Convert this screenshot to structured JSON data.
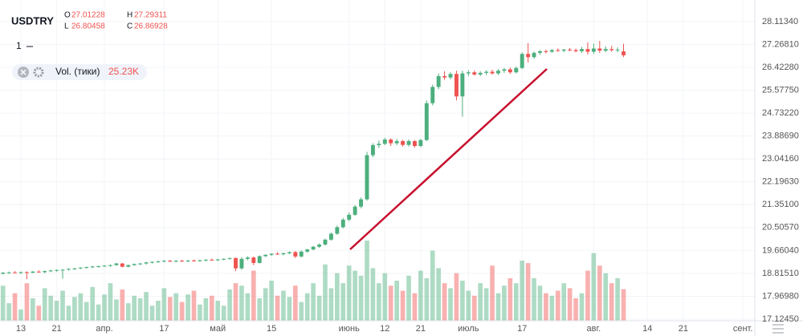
{
  "chart_data": {
    "type": "candlestick",
    "symbol": "USDTRY",
    "legend_keys": [
      "O",
      "H",
      "L",
      "C"
    ],
    "interval": "1",
    "volume_title": "Vol. (тики)",
    "volume_label": "25.23K",
    "up_color": "#4caf7d",
    "down_color": "#ef5350",
    "grid": true,
    "ylim": [
      17.065,
      28.911
    ],
    "yticks": [
      {
        "value": 17.1245,
        "label": "17.12450"
      },
      {
        "value": 17.9698,
        "label": "17.96980"
      },
      {
        "value": 18.8151,
        "label": "18.81510"
      },
      {
        "value": 19.6604,
        "label": "19.66040"
      },
      {
        "value": 20.5057,
        "label": "20.50570"
      },
      {
        "value": 21.351,
        "label": "21.35100"
      },
      {
        "value": 22.1963,
        "label": "22.19630"
      },
      {
        "value": 23.0416,
        "label": "23.04160"
      },
      {
        "value": 23.8869,
        "label": "23.88690"
      },
      {
        "value": 24.7322,
        "label": "24.73220"
      },
      {
        "value": 25.5775,
        "label": "25.57750"
      },
      {
        "value": 26.4228,
        "label": "26.42280"
      },
      {
        "value": 27.2681,
        "label": "27.26810"
      },
      {
        "value": 28.1134,
        "label": "28.11340"
      }
    ],
    "xlim": [
      -0.5,
      126
    ],
    "xticks": [
      {
        "value": 3,
        "label": "13"
      },
      {
        "value": 9,
        "label": "21"
      },
      {
        "value": 17,
        "label": "апр."
      },
      {
        "value": 27,
        "label": "17"
      },
      {
        "value": 36,
        "label": "май"
      },
      {
        "value": 45,
        "label": "15"
      },
      {
        "value": 58,
        "label": "июнь"
      },
      {
        "value": 64,
        "label": "12"
      },
      {
        "value": 70,
        "label": "21"
      },
      {
        "value": 78,
        "label": "июль"
      },
      {
        "value": 87,
        "label": "17"
      },
      {
        "value": 99,
        "label": "авг."
      },
      {
        "value": 108,
        "label": "14"
      },
      {
        "value": 114,
        "label": "21"
      },
      {
        "value": 124,
        "label": "сент."
      }
    ],
    "candles": [
      [
        18.8,
        18.86,
        18.78,
        18.84
      ],
      [
        18.84,
        18.88,
        18.8,
        18.85
      ],
      [
        18.85,
        18.9,
        18.82,
        18.83
      ],
      [
        18.83,
        18.88,
        18.79,
        18.86
      ],
      [
        18.86,
        18.89,
        18.6,
        18.84
      ],
      [
        18.84,
        18.9,
        18.82,
        18.88
      ],
      [
        18.88,
        18.93,
        18.84,
        18.86
      ],
      [
        18.86,
        18.92,
        18.82,
        18.9
      ],
      [
        18.9,
        18.95,
        18.86,
        18.92
      ],
      [
        18.92,
        18.96,
        18.88,
        18.94
      ],
      [
        18.94,
        18.97,
        18.62,
        18.95
      ],
      [
        18.95,
        19.0,
        18.92,
        18.98
      ],
      [
        18.98,
        19.02,
        18.94,
        19.0
      ],
      [
        19.0,
        19.04,
        18.97,
        19.03
      ],
      [
        19.03,
        19.06,
        18.99,
        19.05
      ],
      [
        19.05,
        19.09,
        19.01,
        19.07
      ],
      [
        19.07,
        19.1,
        19.03,
        19.08
      ],
      [
        19.08,
        19.12,
        19.05,
        19.1
      ],
      [
        19.1,
        19.14,
        19.06,
        19.12
      ],
      [
        19.12,
        19.2,
        19.1,
        19.18
      ],
      [
        19.18,
        19.2,
        19.04,
        19.06
      ],
      [
        19.06,
        19.14,
        19.04,
        19.12
      ],
      [
        19.12,
        19.18,
        19.1,
        19.16
      ],
      [
        19.16,
        19.2,
        19.12,
        19.18
      ],
      [
        19.18,
        19.24,
        19.14,
        19.22
      ],
      [
        19.22,
        19.26,
        19.18,
        19.24
      ],
      [
        19.24,
        19.28,
        19.2,
        19.26
      ],
      [
        19.26,
        19.3,
        19.22,
        19.28
      ],
      [
        19.28,
        19.31,
        19.23,
        19.25
      ],
      [
        19.25,
        19.3,
        19.22,
        19.28
      ],
      [
        19.28,
        19.32,
        19.24,
        19.26
      ],
      [
        19.26,
        19.31,
        19.23,
        19.29
      ],
      [
        19.29,
        19.33,
        19.25,
        19.27
      ],
      [
        19.27,
        19.32,
        19.24,
        19.3
      ],
      [
        19.3,
        19.34,
        19.26,
        19.32
      ],
      [
        19.32,
        19.36,
        19.28,
        19.3
      ],
      [
        19.3,
        19.35,
        19.27,
        19.33
      ],
      [
        19.33,
        19.37,
        19.3,
        19.35
      ],
      [
        19.35,
        19.4,
        19.32,
        19.38
      ],
      [
        19.38,
        19.4,
        18.9,
        19.0
      ],
      [
        19.0,
        19.42,
        18.95,
        19.35
      ],
      [
        19.35,
        19.45,
        19.3,
        19.4
      ],
      [
        19.4,
        19.44,
        19.12,
        19.2
      ],
      [
        19.2,
        19.48,
        19.18,
        19.45
      ],
      [
        19.45,
        19.52,
        19.42,
        19.5
      ],
      [
        19.5,
        19.56,
        19.46,
        19.54
      ],
      [
        19.54,
        19.6,
        19.5,
        19.52
      ],
      [
        19.52,
        19.58,
        19.48,
        19.56
      ],
      [
        19.56,
        19.62,
        19.52,
        19.6
      ],
      [
        19.6,
        19.64,
        19.38,
        19.44
      ],
      [
        19.44,
        19.66,
        19.4,
        19.62
      ],
      [
        19.62,
        19.72,
        19.58,
        19.7
      ],
      [
        19.7,
        19.82,
        19.66,
        19.8
      ],
      [
        19.8,
        19.92,
        19.76,
        19.88
      ],
      [
        19.88,
        20.1,
        19.84,
        20.06
      ],
      [
        20.06,
        20.32,
        20.02,
        20.28
      ],
      [
        20.28,
        20.58,
        20.24,
        20.52
      ],
      [
        20.52,
        20.86,
        20.48,
        20.8
      ],
      [
        20.8,
        21.06,
        20.74,
        20.98
      ],
      [
        20.98,
        21.34,
        20.94,
        21.28
      ],
      [
        21.28,
        21.62,
        21.22,
        21.55
      ],
      [
        21.55,
        23.3,
        21.5,
        23.18
      ],
      [
        23.18,
        23.62,
        23.1,
        23.55
      ],
      [
        23.55,
        23.72,
        23.45,
        23.6
      ],
      [
        23.6,
        23.82,
        23.55,
        23.76
      ],
      [
        23.76,
        23.8,
        23.52,
        23.62
      ],
      [
        23.62,
        23.78,
        23.55,
        23.7
      ],
      [
        23.7,
        23.75,
        23.5,
        23.56
      ],
      [
        23.56,
        23.76,
        23.5,
        23.7
      ],
      [
        23.7,
        23.74,
        23.46,
        23.52
      ],
      [
        23.52,
        23.78,
        23.48,
        23.74
      ],
      [
        23.74,
        25.2,
        23.7,
        25.1
      ],
      [
        25.1,
        25.78,
        25.02,
        25.7
      ],
      [
        25.7,
        26.2,
        25.62,
        26.1
      ],
      [
        26.1,
        26.28,
        25.96,
        26.05
      ],
      [
        26.05,
        26.24,
        25.98,
        26.18
      ],
      [
        26.18,
        26.3,
        25.2,
        25.35
      ],
      [
        25.35,
        26.3,
        24.6,
        26.2
      ],
      [
        26.2,
        26.32,
        26.1,
        26.24
      ],
      [
        26.24,
        26.3,
        26.12,
        26.16
      ],
      [
        26.16,
        26.28,
        26.1,
        26.22
      ],
      [
        26.22,
        26.32,
        26.14,
        26.26
      ],
      [
        26.26,
        26.34,
        26.16,
        26.2
      ],
      [
        26.2,
        26.36,
        26.14,
        26.3
      ],
      [
        26.3,
        26.4,
        26.22,
        26.35
      ],
      [
        26.35,
        26.42,
        26.18,
        26.24
      ],
      [
        26.24,
        26.45,
        26.2,
        26.4
      ],
      [
        26.4,
        26.98,
        26.36,
        26.92
      ],
      [
        26.92,
        27.32,
        26.6,
        26.8
      ],
      [
        26.8,
        27.0,
        26.74,
        26.96
      ],
      [
        26.96,
        27.06,
        26.88,
        27.02
      ],
      [
        27.02,
        27.08,
        26.94,
        27.0
      ],
      [
        27.0,
        27.1,
        26.96,
        27.06
      ],
      [
        27.06,
        27.12,
        27.0,
        27.04
      ],
      [
        27.04,
        27.1,
        26.98,
        27.08
      ],
      [
        27.08,
        27.14,
        27.02,
        27.06
      ],
      [
        27.06,
        27.12,
        26.98,
        27.02
      ],
      [
        27.02,
        27.18,
        26.96,
        27.1
      ],
      [
        27.1,
        27.35,
        26.9,
        27.0
      ],
      [
        27.0,
        27.3,
        26.92,
        27.12
      ],
      [
        27.12,
        27.4,
        26.96,
        27.04
      ],
      [
        27.04,
        27.2,
        26.98,
        27.1
      ],
      [
        27.1,
        27.22,
        27.0,
        27.06
      ],
      [
        27.06,
        27.16,
        26.98,
        27.08
      ],
      [
        27.01228,
        27.29311,
        26.80458,
        26.86928
      ]
    ],
    "volumes": [
      28000,
      14000,
      22000,
      9000,
      30000,
      18000,
      12000,
      26000,
      20000,
      16000,
      24000,
      12000,
      19000,
      22000,
      15000,
      27000,
      13000,
      21000,
      30000,
      17000,
      25000,
      14000,
      20000,
      18000,
      23000,
      12000,
      16000,
      26000,
      19000,
      22000,
      15000,
      21000,
      24000,
      13000,
      18000,
      20000,
      16000,
      12000,
      25000,
      30000,
      28000,
      22000,
      40000,
      18000,
      26000,
      32000,
      20000,
      24000,
      19000,
      28000,
      15000,
      22000,
      30000,
      20000,
      45000,
      26000,
      38000,
      30000,
      44000,
      40000,
      36000,
      64000,
      42000,
      30000,
      38000,
      28000,
      32000,
      24000,
      36000,
      22000,
      40000,
      34000,
      56000,
      42000,
      30000,
      26000,
      38000,
      32000,
      24000,
      20000,
      30000,
      26000,
      44000,
      22000,
      28000,
      34000,
      30000,
      48000,
      46000,
      34000,
      28000,
      22000,
      20000,
      24000,
      30000,
      26000,
      18000,
      22000,
      40000,
      54000,
      44000,
      38000,
      30000,
      34000,
      25230
    ]
  }
}
